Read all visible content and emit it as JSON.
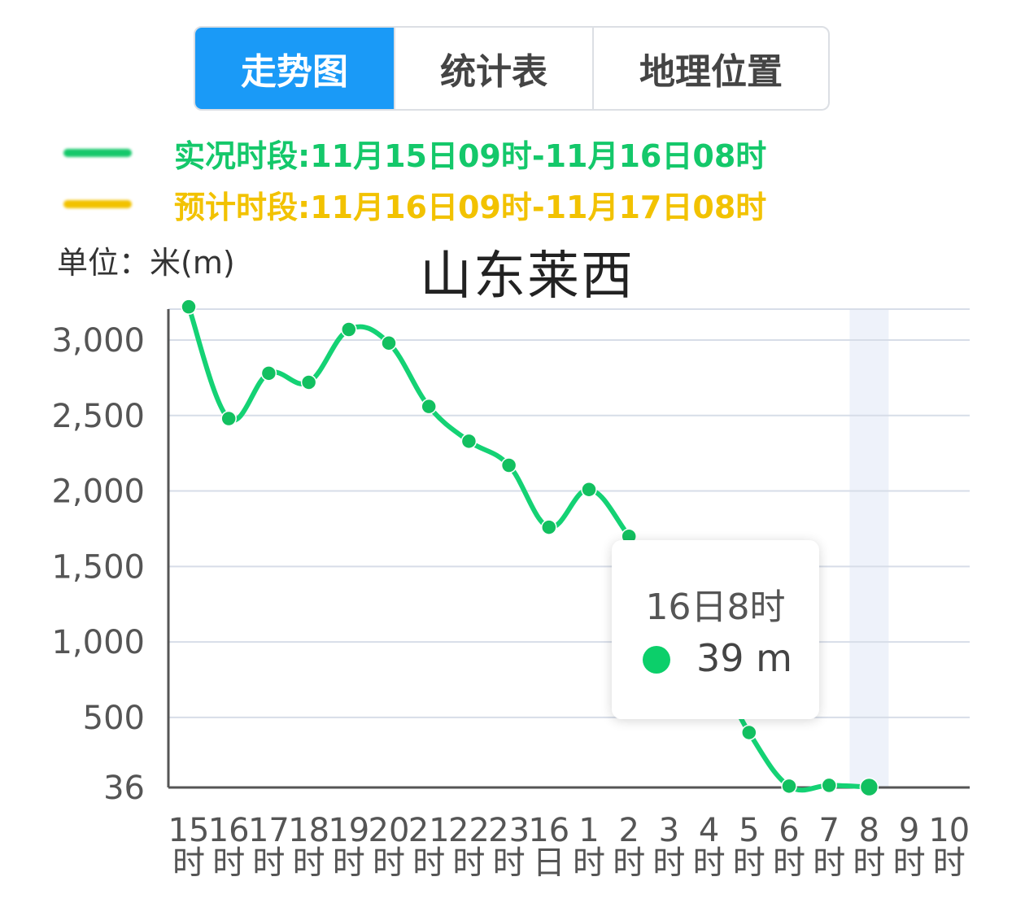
{
  "tabs": [
    {
      "label": "走势图",
      "active": true
    },
    {
      "label": "统计表",
      "active": false
    },
    {
      "label": "地理位置",
      "active": false
    }
  ],
  "legend": {
    "observed": {
      "label": "实况时段:11月15日09时-11月16日08时",
      "color": "#14c86a"
    },
    "forecast": {
      "label": "预计时段:11月16日09时-11月17日08时",
      "color": "#f2c200"
    }
  },
  "unit_label": "单位：米(m)",
  "chart_data": {
    "type": "line",
    "title": "山东莱西",
    "xlabel": "",
    "ylabel": "单位：米(m)",
    "ylim": [
      36,
      3250
    ],
    "yticks": [
      36,
      500,
      1000,
      1500,
      2000,
      2500,
      3000
    ],
    "ytick_labels": [
      "36",
      "500",
      "1,000",
      "1,500",
      "2,000",
      "2,500",
      "3,000"
    ],
    "grid": true,
    "categories": [
      [
        "15",
        "时"
      ],
      [
        "16",
        "时"
      ],
      [
        "17",
        "时"
      ],
      [
        "18",
        "时"
      ],
      [
        "19",
        "时"
      ],
      [
        "20",
        "时"
      ],
      [
        "21",
        "时"
      ],
      [
        "22",
        "时"
      ],
      [
        "23",
        "时"
      ],
      [
        "16",
        "日"
      ],
      [
        "1",
        "时"
      ],
      [
        "2",
        "时"
      ],
      [
        "3",
        "时"
      ],
      [
        "4",
        "时"
      ],
      [
        "5",
        "时"
      ],
      [
        "6",
        "时"
      ],
      [
        "7",
        "时"
      ],
      [
        "8",
        "时"
      ],
      [
        "9",
        "时"
      ],
      [
        "10",
        "时"
      ]
    ],
    "series": [
      {
        "color": "#14d274",
        "values": [
          3220,
          2480,
          2780,
          2720,
          3070,
          2980,
          2560,
          2330,
          2170,
          1760,
          2010,
          1700,
          1300,
          900,
          400,
          45,
          50,
          39,
          null,
          null
        ]
      }
    ],
    "highlight_index": 17,
    "tooltip": {
      "title": "16日8时",
      "value": "39 m"
    }
  }
}
